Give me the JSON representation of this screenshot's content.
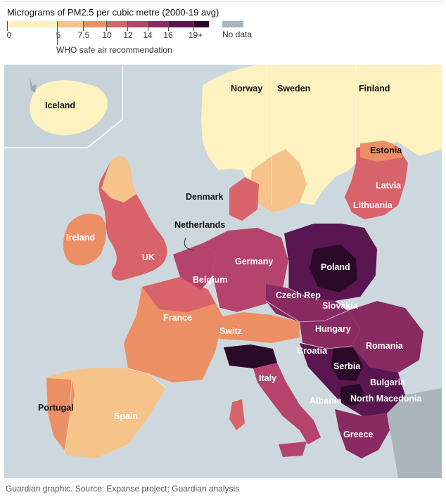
{
  "legend": {
    "title": "Micrograms of PM2.5 per cubic metre (2000-19 avg)",
    "ticks": [
      "0",
      "5",
      "7.5",
      "10",
      "12",
      "14",
      "16",
      "19+"
    ],
    "who_label": "WHO safe air recommendation",
    "who_threshold": 5,
    "no_data_label": "No data",
    "colors": [
      "#fdf2c0",
      "#f6c48a",
      "#ec8f65",
      "#d9636a",
      "#b5446c",
      "#8a2a63",
      "#5a1650",
      "#2a0a28"
    ],
    "no_data_color": "#aab5bb",
    "sea_color": "#cdd8de"
  },
  "map": {
    "labels": {
      "iceland": "Iceland",
      "norway": "Norway",
      "sweden": "Sweden",
      "finland": "Finland",
      "estonia": "Estonia",
      "latvia": "Latvia",
      "lithuania": "Lithuania",
      "denmark": "Denmark",
      "netherlands": "Netherlands",
      "ireland": "Ireland",
      "uk": "UK",
      "germany": "Germany",
      "poland": "Poland",
      "belgium": "Belgium",
      "czech": "Czech Rep",
      "slovakia": "Slovakia",
      "france": "France",
      "hungary": "Hungary",
      "switz": "Switz",
      "croatia": "Croatia",
      "romania": "Romania",
      "serbia": "Serbia",
      "italy": "Italy",
      "bulgaria": "Bulgaria",
      "albania": "Albania",
      "north_macedonia": "North Macedonia",
      "portugal": "Portugal",
      "spain": "Spain",
      "greece": "Greece"
    }
  },
  "footer": "Guardian graphic. Source: Expanse project; Guardian analysis"
}
